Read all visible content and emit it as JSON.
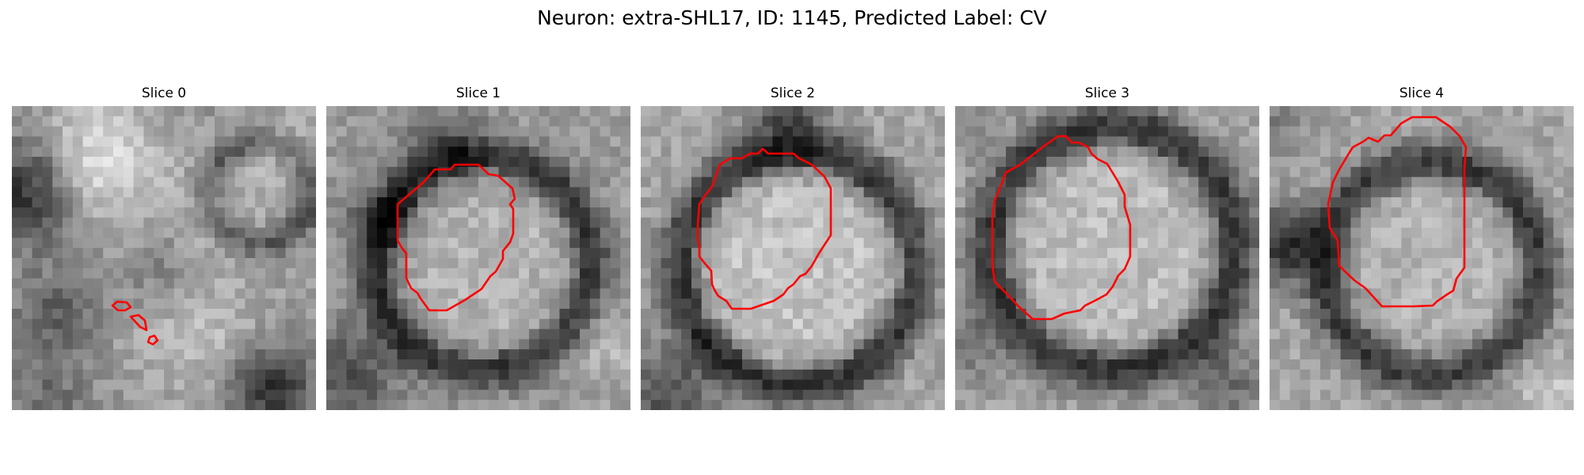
{
  "title": "Neuron: extra-SHL17, ID: 1145, Predicted Label: CV",
  "panels": [
    {
      "label": "Slice 0"
    },
    {
      "label": "Slice 1"
    },
    {
      "label": "Slice 2"
    },
    {
      "label": "Slice 3"
    },
    {
      "label": "Slice 4"
    }
  ],
  "colors": {
    "contour": "#ff0000"
  }
}
